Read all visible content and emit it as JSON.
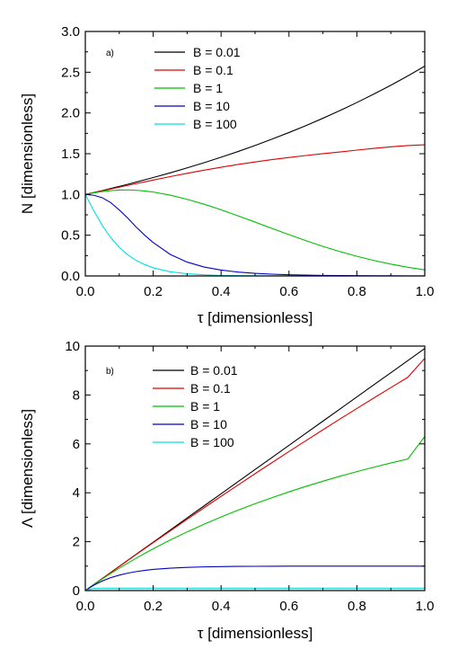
{
  "chart_data": [
    {
      "type": "line",
      "panel_label": "a)",
      "xlabel": "τ [dimensionless]",
      "ylabel": "N [dimensionless]",
      "xlim": [
        0,
        1
      ],
      "ylim": [
        0,
        3
      ],
      "xticks": [
        0.0,
        0.2,
        0.4,
        0.6,
        0.8,
        1.0
      ],
      "xtick_labels": [
        "0.0",
        "0.2",
        "0.4",
        "0.6",
        "0.8",
        "1.0"
      ],
      "yticks": [
        0.0,
        0.5,
        1.0,
        1.5,
        2.0,
        2.5,
        3.0
      ],
      "ytick_labels": [
        "0.0",
        "0.5",
        "1.0",
        "1.5",
        "2.0",
        "2.5",
        "3.0"
      ],
      "grid": false,
      "legend_position": "top-left",
      "x": [
        0,
        0.025,
        0.05,
        0.075,
        0.1,
        0.125,
        0.15,
        0.175,
        0.2,
        0.25,
        0.3,
        0.35,
        0.4,
        0.45,
        0.5,
        0.55,
        0.6,
        0.65,
        0.7,
        0.75,
        0.8,
        0.85,
        0.9,
        0.95,
        1.0
      ],
      "series": [
        {
          "name": "B = 0.01",
          "color": "#000000",
          "values": [
            1.0,
            1.024,
            1.048,
            1.074,
            1.099,
            1.125,
            1.152,
            1.18,
            1.208,
            1.265,
            1.326,
            1.39,
            1.457,
            1.527,
            1.601,
            1.679,
            1.76,
            1.845,
            1.935,
            2.029,
            2.128,
            2.232,
            2.34,
            2.454,
            2.574
          ]
        },
        {
          "name": "B = 0.1",
          "color": "#e00000",
          "values": [
            1.0,
            1.022,
            1.044,
            1.067,
            1.089,
            1.111,
            1.133,
            1.155,
            1.177,
            1.219,
            1.259,
            1.298,
            1.334,
            1.368,
            1.399,
            1.428,
            1.454,
            1.478,
            1.501,
            1.521,
            1.544,
            1.566,
            1.585,
            1.6,
            1.61
          ]
        },
        {
          "name": "B = 1",
          "color": "#00c000",
          "values": [
            1.0,
            1.02,
            1.036,
            1.047,
            1.054,
            1.056,
            1.052,
            1.043,
            1.03,
            0.992,
            0.94,
            0.88,
            0.812,
            0.738,
            0.661,
            0.583,
            0.507,
            0.433,
            0.363,
            0.299,
            0.241,
            0.19,
            0.145,
            0.107,
            0.075
          ]
        },
        {
          "name": "B = 10",
          "color": "#0000c8",
          "values": [
            1.0,
            0.99,
            0.96,
            0.9,
            0.81,
            0.71,
            0.6,
            0.5,
            0.41,
            0.265,
            0.17,
            0.11,
            0.072,
            0.048,
            0.032,
            0.022,
            0.015,
            0.01,
            0.007,
            0.005,
            0.003,
            0.002,
            0.002,
            0.001,
            0.001
          ]
        },
        {
          "name": "B = 100",
          "color": "#00e0e0",
          "values": [
            1.0,
            0.8,
            0.62,
            0.47,
            0.35,
            0.26,
            0.19,
            0.14,
            0.1,
            0.052,
            0.027,
            0.014,
            0.007,
            0.004,
            0.002,
            0.001,
            0.001,
            0.0,
            0.0,
            0.0,
            0.0,
            0.0,
            0.0,
            0.0,
            0.0
          ]
        }
      ]
    },
    {
      "type": "line",
      "panel_label": "b)",
      "xlabel": "τ [dimensionless]",
      "ylabel": "Λ [dimensionless]",
      "xlim": [
        0,
        1
      ],
      "ylim": [
        0,
        10
      ],
      "xticks": [
        0.0,
        0.2,
        0.4,
        0.6,
        0.8,
        1.0
      ],
      "xtick_labels": [
        "0.0",
        "0.2",
        "0.4",
        "0.6",
        "0.8",
        "1.0"
      ],
      "yticks": [
        0,
        2,
        4,
        6,
        8,
        10
      ],
      "ytick_labels": [
        "0",
        "2",
        "4",
        "6",
        "8",
        "10"
      ],
      "grid": false,
      "legend_position": "top-left",
      "x": [
        0,
        0.025,
        0.05,
        0.075,
        0.1,
        0.125,
        0.15,
        0.175,
        0.2,
        0.25,
        0.3,
        0.35,
        0.4,
        0.45,
        0.5,
        0.55,
        0.6,
        0.65,
        0.7,
        0.75,
        0.8,
        0.85,
        0.9,
        0.95,
        1.0
      ],
      "series": [
        {
          "name": "B = 0.01",
          "color": "#000000",
          "values": [
            0.0,
            0.248,
            0.495,
            0.743,
            0.99,
            1.238,
            1.485,
            1.733,
            1.98,
            2.475,
            2.97,
            3.465,
            3.96,
            4.455,
            4.95,
            5.445,
            5.94,
            6.435,
            6.93,
            7.425,
            7.92,
            8.415,
            8.91,
            9.405,
            9.9
          ]
        },
        {
          "name": "B = 0.1",
          "color": "#e00000",
          "values": [
            0.0,
            0.247,
            0.494,
            0.741,
            0.987,
            1.232,
            1.476,
            1.719,
            1.96,
            2.44,
            2.915,
            3.387,
            3.855,
            4.319,
            4.779,
            5.235,
            5.686,
            6.133,
            6.576,
            7.014,
            7.448,
            7.877,
            8.302,
            8.722,
            9.5
          ]
        },
        {
          "name": "B = 1",
          "color": "#00c000",
          "values": [
            0.0,
            0.244,
            0.476,
            0.7,
            0.916,
            1.124,
            1.325,
            1.52,
            1.708,
            2.066,
            2.401,
            2.715,
            3.011,
            3.29,
            3.553,
            3.802,
            4.038,
            4.262,
            4.474,
            4.675,
            4.866,
            5.047,
            5.218,
            5.381,
            6.3
          ]
        },
        {
          "name": "B = 10",
          "color": "#0000c8",
          "values": [
            0.0,
            0.221,
            0.393,
            0.528,
            0.632,
            0.713,
            0.777,
            0.826,
            0.865,
            0.918,
            0.95,
            0.97,
            0.982,
            0.989,
            0.993,
            0.996,
            0.998,
            0.999,
            0.999,
            1.0,
            1.0,
            1.0,
            1.0,
            1.0,
            1.0
          ]
        },
        {
          "name": "B = 100",
          "color": "#00e0e0",
          "values": [
            0.0,
            0.092,
            0.099,
            0.1,
            0.1,
            0.1,
            0.1,
            0.1,
            0.1,
            0.1,
            0.1,
            0.1,
            0.1,
            0.1,
            0.1,
            0.1,
            0.1,
            0.1,
            0.1,
            0.1,
            0.1,
            0.1,
            0.1,
            0.1,
            0.1
          ]
        }
      ]
    }
  ]
}
